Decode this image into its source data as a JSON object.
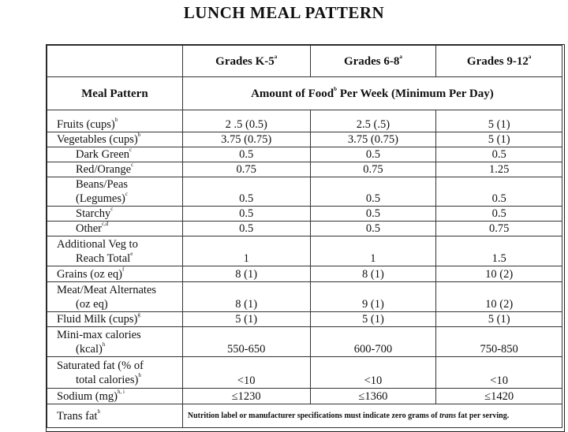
{
  "title": "LUNCH MEAL PATTERN",
  "columns": {
    "g1": "Grades K-5",
    "g1_sup": "a",
    "g2": "Grades 6-8",
    "g2_sup": "a",
    "g3": "Grades 9-12",
    "g3_sup": "a"
  },
  "subheader": {
    "meal_pattern": "Meal Pattern",
    "amount_a": "Amount of Food",
    "amount_sup": "b",
    "amount_b": " Per Week (Minimum Per Day)"
  },
  "rows": {
    "fruits": {
      "label": "Fruits (cups)",
      "sup": "b",
      "v1": "2 .5 (0.5)",
      "v2": "2.5 (.5)",
      "v3": "5 (1)"
    },
    "vegetables": {
      "label": "Vegetables (cups)",
      "sup": "b",
      "v1": "3.75 (0.75)",
      "v2": "3.75 (0.75)",
      "v3": "5 (1)"
    },
    "dark_green": {
      "label": "Dark Green",
      "sup": "c",
      "v1": "0.5",
      "v2": "0.5",
      "v3": "0.5"
    },
    "red_orange": {
      "label": "Red/Orange",
      "sup": "c",
      "v1": "0.75",
      "v2": "0.75",
      "v3": "1.25"
    },
    "beans": {
      "label1": "Beans/Peas",
      "label2": "(Legumes)",
      "sup": "c",
      "v1": "0.5",
      "v2": "0.5",
      "v3": "0.5"
    },
    "starchy": {
      "label": "Starchy",
      "sup": "c",
      "v1": "0.5",
      "v2": "0.5",
      "v3": "0.5"
    },
    "other": {
      "label": "Other",
      "sup": "c,d",
      "v1": "0.5",
      "v2": "0.5",
      "v3": "0.75"
    },
    "additional": {
      "label1": "Additional Veg to",
      "label2": "Reach Total",
      "sup": "e",
      "v1": "1",
      "v2": "1",
      "v3": "1.5"
    },
    "grains": {
      "label": "Grains (oz eq)",
      "sup": "f",
      "v1": "8 (1)",
      "v2": "8 (1)",
      "v3": "10 (2)"
    },
    "meat": {
      "label1": "Meat/Meat Alternates",
      "label2": "(oz eq)",
      "v1": "8 (1)",
      "v2": "9 (1)",
      "v3": "10 (2)"
    },
    "milk": {
      "label": "Fluid Milk (cups)",
      "sup": "g",
      "v1": "5 (1)",
      "v2": "5 (1)",
      "v3": "5 (1)"
    },
    "calories": {
      "label1": "Mini-max calories",
      "label2": "(kcal)",
      "sup": "h",
      "v1": "550-650",
      "v2": "600-700",
      "v3": "750-850"
    },
    "satfat": {
      "label1": "Saturated fat (% of",
      "label2": "total calories)",
      "sup": "h",
      "v1": "<10",
      "v2": "<10",
      "v3": "<10"
    },
    "sodium": {
      "label": "Sodium (mg)",
      "sup": "h, i",
      "v1": "≤1230",
      "v2": "≤1360",
      "v3": "≤1420"
    },
    "transfat": {
      "label": "Trans fat",
      "sup": "h",
      "note_a": "Nutrition label or manufacturer specifications must indicate zero grams of ",
      "note_em": "trans",
      "note_b": " fat per serving."
    }
  }
}
